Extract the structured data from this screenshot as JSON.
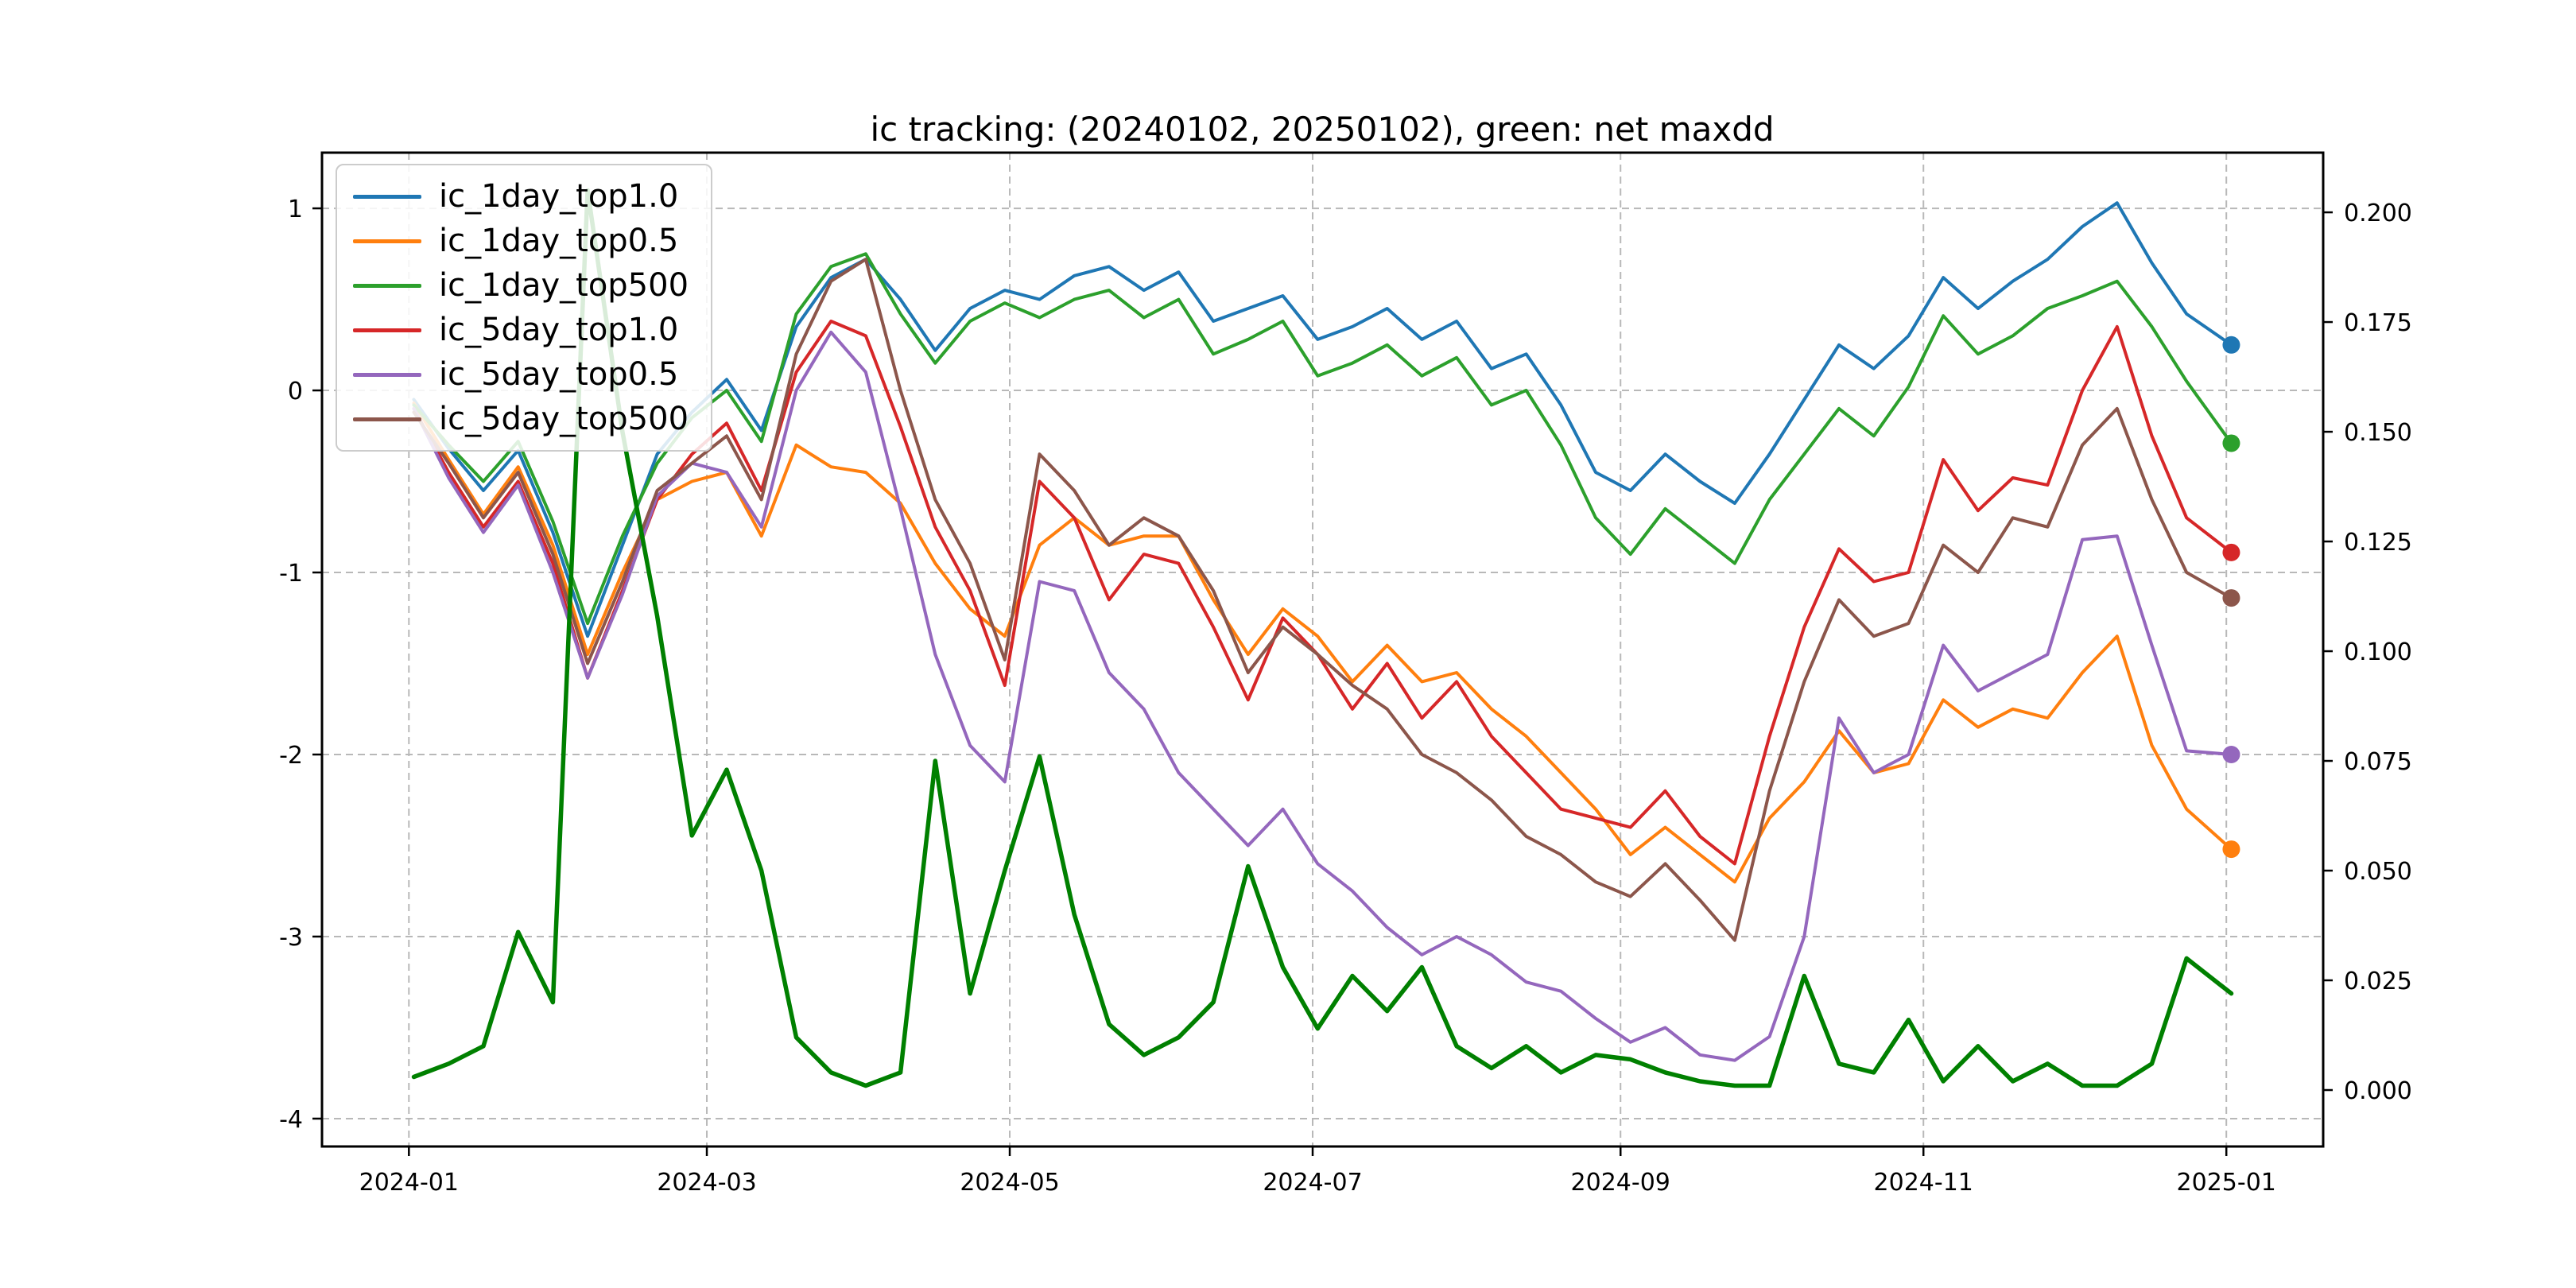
{
  "title": "ic tracking: (20240102, 20250102), green: net maxdd",
  "chart_data": {
    "type": "line",
    "title": "ic tracking: (20240102, 20250102), green: net maxdd",
    "grid": true,
    "legend_position": "upper left",
    "end_markers": true,
    "x_domain_days": [
      -18.5,
      384.5
    ],
    "ylim_left": [
      -4.153,
      1.306
    ],
    "ylim_right": [
      -0.01286,
      0.2136
    ],
    "left_yticks": [
      {
        "value": 1,
        "label": "1"
      },
      {
        "value": 0,
        "label": "0"
      },
      {
        "value": -1,
        "label": "-1"
      },
      {
        "value": -2,
        "label": "-2"
      },
      {
        "value": -3,
        "label": "-3"
      },
      {
        "value": -4,
        "label": "-4"
      }
    ],
    "right_yticks": [
      {
        "value": 0.2,
        "label": "0.200"
      },
      {
        "value": 0.175,
        "label": "0.175"
      },
      {
        "value": 0.15,
        "label": "0.150"
      },
      {
        "value": 0.125,
        "label": "0.125"
      },
      {
        "value": 0.1,
        "label": "0.100"
      },
      {
        "value": 0.075,
        "label": "0.075"
      },
      {
        "value": 0.05,
        "label": "0.050"
      },
      {
        "value": 0.025,
        "label": "0.025"
      },
      {
        "value": 0.0,
        "label": "0.000"
      }
    ],
    "x_ticks": [
      {
        "day": -1,
        "label": "2024-01"
      },
      {
        "day": 59,
        "label": "2024-03"
      },
      {
        "day": 120,
        "label": "2024-05"
      },
      {
        "day": 181,
        "label": "2024-07"
      },
      {
        "day": 243,
        "label": "2024-09"
      },
      {
        "day": 304,
        "label": "2024-11"
      },
      {
        "day": 365,
        "label": "2025-01"
      }
    ],
    "x_days": [
      0,
      7,
      14,
      21,
      28,
      35,
      42,
      49,
      56,
      63,
      70,
      77,
      84,
      91,
      98,
      105,
      112,
      119,
      126,
      133,
      140,
      147,
      154,
      161,
      168,
      175,
      182,
      189,
      196,
      203,
      210,
      217,
      224,
      231,
      238,
      245,
      252,
      259,
      266,
      273,
      280,
      287,
      294,
      301,
      308,
      315,
      322,
      329,
      336,
      343,
      350,
      357,
      366
    ],
    "series": [
      {
        "name": "ic_1day_top1.0",
        "color": "#1f77b4",
        "axis": "left",
        "in_legend": true,
        "line_width": 4,
        "values": [
          -0.05,
          -0.32,
          -0.55,
          -0.33,
          -0.78,
          -1.35,
          -0.85,
          -0.35,
          -0.12,
          0.06,
          -0.22,
          0.35,
          0.62,
          0.72,
          0.5,
          0.22,
          0.45,
          0.55,
          0.5,
          0.63,
          0.68,
          0.55,
          0.65,
          0.38,
          0.45,
          0.52,
          0.28,
          0.35,
          0.45,
          0.28,
          0.38,
          0.12,
          0.2,
          -0.08,
          -0.45,
          -0.55,
          -0.35,
          -0.5,
          -0.62,
          -0.35,
          -0.05,
          0.25,
          0.12,
          0.3,
          0.62,
          0.45,
          0.6,
          0.72,
          0.9,
          1.03,
          0.7,
          0.42,
          0.25
        ]
      },
      {
        "name": "ic_1day_top0.5",
        "color": "#ff7f0e",
        "axis": "left",
        "in_legend": true,
        "line_width": 4,
        "values": [
          -0.07,
          -0.38,
          -0.68,
          -0.42,
          -0.85,
          -1.45,
          -1.0,
          -0.6,
          -0.5,
          -0.45,
          -0.8,
          -0.3,
          -0.42,
          -0.45,
          -0.62,
          -0.95,
          -1.2,
          -1.35,
          -0.85,
          -0.7,
          -0.85,
          -0.8,
          -0.8,
          -1.15,
          -1.45,
          -1.2,
          -1.35,
          -1.6,
          -1.4,
          -1.6,
          -1.55,
          -1.75,
          -1.9,
          -2.1,
          -2.3,
          -2.55,
          -2.4,
          -2.55,
          -2.7,
          -2.35,
          -2.15,
          -1.87,
          -2.1,
          -2.05,
          -1.7,
          -1.85,
          -1.75,
          -1.8,
          -1.55,
          -1.35,
          -1.95,
          -2.3,
          -2.52
        ]
      },
      {
        "name": "ic_1day_top500",
        "color": "#2ca02c",
        "axis": "left",
        "in_legend": true,
        "line_width": 4,
        "values": [
          -0.08,
          -0.3,
          -0.5,
          -0.28,
          -0.72,
          -1.28,
          -0.8,
          -0.4,
          -0.15,
          0.0,
          -0.28,
          0.42,
          0.68,
          0.75,
          0.42,
          0.15,
          0.38,
          0.48,
          0.4,
          0.5,
          0.55,
          0.4,
          0.5,
          0.2,
          0.28,
          0.38,
          0.08,
          0.15,
          0.25,
          0.08,
          0.18,
          -0.08,
          0.0,
          -0.3,
          -0.7,
          -0.9,
          -0.65,
          -0.8,
          -0.95,
          -0.6,
          -0.35,
          -0.1,
          -0.25,
          0.02,
          0.41,
          0.2,
          0.3,
          0.45,
          0.52,
          0.6,
          0.35,
          0.05,
          -0.29
        ]
      },
      {
        "name": "ic_5day_top1.0",
        "color": "#d62728",
        "axis": "left",
        "in_legend": true,
        "line_width": 4,
        "values": [
          -0.1,
          -0.45,
          -0.75,
          -0.5,
          -0.95,
          -1.58,
          -1.1,
          -0.6,
          -0.35,
          -0.18,
          -0.55,
          0.1,
          0.38,
          0.3,
          -0.2,
          -0.75,
          -1.1,
          -1.62,
          -0.5,
          -0.7,
          -1.15,
          -0.9,
          -0.95,
          -1.3,
          -1.7,
          -1.25,
          -1.45,
          -1.75,
          -1.5,
          -1.8,
          -1.6,
          -1.9,
          -2.1,
          -2.3,
          -2.35,
          -2.4,
          -2.2,
          -2.45,
          -2.6,
          -1.9,
          -1.3,
          -0.87,
          -1.05,
          -1.0,
          -0.38,
          -0.66,
          -0.48,
          -0.52,
          0.0,
          0.35,
          -0.25,
          -0.7,
          -0.89
        ]
      },
      {
        "name": "ic_5day_top0.5",
        "color": "#9467bd",
        "axis": "left",
        "in_legend": true,
        "line_width": 4,
        "values": [
          -0.1,
          -0.48,
          -0.78,
          -0.52,
          -1.0,
          -1.58,
          -1.12,
          -0.58,
          -0.4,
          -0.45,
          -0.75,
          0.0,
          0.32,
          0.1,
          -0.65,
          -1.45,
          -1.95,
          -2.15,
          -1.05,
          -1.1,
          -1.55,
          -1.75,
          -2.1,
          -2.3,
          -2.5,
          -2.3,
          -2.6,
          -2.75,
          -2.95,
          -3.1,
          -3.0,
          -3.1,
          -3.25,
          -3.3,
          -3.45,
          -3.58,
          -3.5,
          -3.65,
          -3.68,
          -3.55,
          -3.0,
          -1.8,
          -2.1,
          -2.0,
          -1.4,
          -1.65,
          -1.55,
          -1.45,
          -0.82,
          -0.8,
          -1.4,
          -1.98,
          -2.0
        ]
      },
      {
        "name": "ic_5day_top500",
        "color": "#8c564b",
        "axis": "left",
        "in_legend": true,
        "line_width": 4,
        "values": [
          -0.12,
          -0.4,
          -0.7,
          -0.45,
          -0.9,
          -1.5,
          -1.05,
          -0.55,
          -0.4,
          -0.25,
          -0.6,
          0.2,
          0.6,
          0.72,
          0.0,
          -0.6,
          -0.95,
          -1.48,
          -0.35,
          -0.55,
          -0.85,
          -0.7,
          -0.8,
          -1.1,
          -1.55,
          -1.3,
          -1.45,
          -1.62,
          -1.75,
          -2.0,
          -2.1,
          -2.25,
          -2.45,
          -2.55,
          -2.7,
          -2.78,
          -2.6,
          -2.8,
          -3.02,
          -2.2,
          -1.6,
          -1.15,
          -1.35,
          -1.28,
          -0.85,
          -1.0,
          -0.7,
          -0.75,
          -0.3,
          -0.1,
          -0.6,
          -1.0,
          -1.14
        ]
      },
      {
        "name": "net_maxdd",
        "color": "#008000",
        "axis": "right",
        "in_legend": false,
        "line_width": 5.5,
        "values": [
          0.003,
          0.006,
          0.01,
          0.036,
          0.02,
          0.205,
          0.15,
          0.108,
          0.058,
          0.073,
          0.05,
          0.012,
          0.004,
          0.001,
          0.004,
          0.075,
          0.022,
          0.05,
          0.076,
          0.04,
          0.015,
          0.008,
          0.012,
          0.02,
          0.051,
          0.028,
          0.014,
          0.026,
          0.018,
          0.028,
          0.01,
          0.005,
          0.01,
          0.004,
          0.008,
          0.007,
          0.004,
          0.002,
          0.001,
          0.001,
          0.026,
          0.006,
          0.004,
          0.016,
          0.002,
          0.01,
          0.002,
          0.006,
          0.001,
          0.001,
          0.006,
          0.03,
          0.022
        ]
      }
    ],
    "plot_styles": {
      "grid_color": "#b8b8b8",
      "spine_color": "#000000",
      "background": "#ffffff",
      "end_marker_radius": 11
    }
  }
}
